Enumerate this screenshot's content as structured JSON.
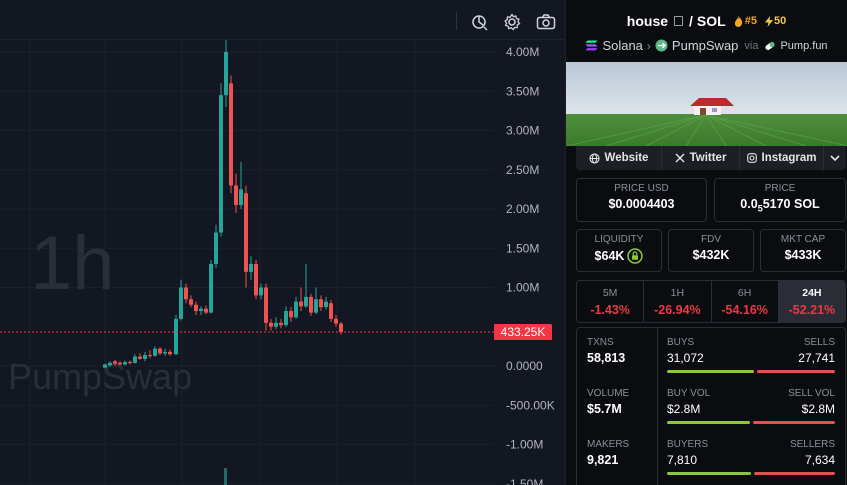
{
  "chart": {
    "interval_watermark": "1h",
    "dex_watermark": "PumpSwap",
    "y_axis_labels": [
      "4.00M",
      "3.50M",
      "3.00M",
      "2.50M",
      "2.00M",
      "1.50M",
      "1.00M",
      "0.0000",
      "-500.00K",
      "-1.00M",
      "-1.50M"
    ],
    "current_price_label": "433.25K",
    "colors": {
      "up": "#26a69a",
      "down": "#ef5350",
      "price_tag": "#f23645"
    },
    "toolbar_icons": [
      "indicator-icon",
      "gear-icon",
      "camera-icon"
    ]
  },
  "chart_data": {
    "type": "candlestick",
    "y_axis_values": [
      4000000,
      3500000,
      3000000,
      2500000,
      2000000,
      1500000,
      1000000,
      0,
      -500000,
      -1000000,
      -1500000
    ],
    "last_value": 433250
  },
  "pair": {
    "base": "house",
    "separator": "/",
    "quote": "SOL",
    "rank": "#5",
    "boost": "50",
    "chain": "Solana",
    "dex": "PumpSwap",
    "via": "via",
    "launchpad": "Pump.fun"
  },
  "links": [
    {
      "label": "Website",
      "icon": "globe-icon"
    },
    {
      "label": "Twitter",
      "icon": "x-icon"
    },
    {
      "label": "Instagram",
      "icon": "instagram-icon"
    }
  ],
  "stats": {
    "price_usd": {
      "label": "PRICE USD",
      "value": "$0.0004403"
    },
    "price_native": {
      "label": "PRICE",
      "value_prefix": "0.0",
      "value_sub": "5",
      "value_suffix": "5170 SOL"
    },
    "liquidity": {
      "label": "LIQUIDITY",
      "value": "$64K"
    },
    "fdv": {
      "label": "FDV",
      "value": "$432K"
    },
    "mkt_cap": {
      "label": "MKT CAP",
      "value": "$433K"
    }
  },
  "timeframes": [
    {
      "label": "5M",
      "change": "-1.43%"
    },
    {
      "label": "1H",
      "change": "-26.94%"
    },
    {
      "label": "6H",
      "change": "-54.16%"
    },
    {
      "label": "24H",
      "change": "-52.21%",
      "active": true
    }
  ],
  "txns": {
    "txns_label": "TXNS",
    "txns_value": "58,813",
    "buys_label": "BUYS",
    "buys_value": "31,072",
    "sells_label": "SELLS",
    "sells_value": "27,741",
    "volume_label": "VOLUME",
    "volume_value": "$5.7M",
    "buy_vol_label": "BUY VOL",
    "buy_vol_value": "$2.8M",
    "sell_vol_label": "SELL VOL",
    "sell_vol_value": "$2.8M",
    "makers_label": "MAKERS",
    "makers_value": "9,821",
    "buyers_label": "BUYERS",
    "buyers_value": "7,810",
    "sellers_label": "SELLERS",
    "sellers_value": "7,634",
    "buys_ratio": 0.53,
    "buy_vol_ratio": 0.5,
    "buyers_ratio": 0.51
  }
}
